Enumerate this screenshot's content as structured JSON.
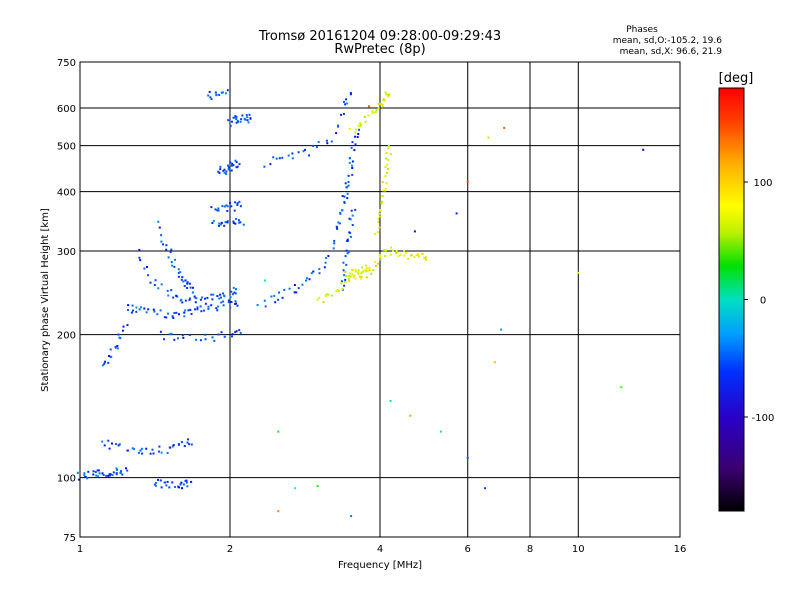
{
  "chart_data": {
    "type": "scatter",
    "title": "Tromsø 20161204 09:28:00-09:29:43",
    "subtitle": "RwPretec (8p)",
    "xlabel": "Frequency [MHz]",
    "ylabel": "Stationary phase Virtual Height [km]",
    "x_scale": "log",
    "y_scale": "log",
    "xlim": [
      1,
      16
    ],
    "ylim": [
      75,
      750
    ],
    "x_ticks": [
      1,
      2,
      4,
      6,
      8,
      10,
      16
    ],
    "y_ticks": [
      75,
      100,
      200,
      300,
      400,
      500,
      600,
      750
    ],
    "x_gridlines": [
      2,
      4,
      6,
      8,
      10
    ],
    "y_gridlines": [
      100,
      200,
      300,
      400,
      500,
      600
    ],
    "phases": {
      "heading": "Phases",
      "line_o": "mean, sd,O:-105.2, 19.6",
      "line_x": "mean, sd,X:  96.6, 21.9"
    },
    "colorbar": {
      "label": "[deg]",
      "range": [
        -180,
        180
      ],
      "ticks": [
        100,
        0,
        -100
      ],
      "tick_labels": [
        "100",
        "0",
        "-100"
      ]
    },
    "series": [
      {
        "name": "O-mode",
        "phase": -105,
        "traces": [
          {
            "f": [
              1.0,
              1.04,
              1.08,
              1.12,
              1.16,
              1.2,
              1.26
            ],
            "h": [
              101,
              101,
              102,
              102,
              103,
              103,
              104
            ]
          },
          {
            "f": [
              1.1,
              1.2,
              1.3,
              1.4,
              1.5,
              1.6,
              1.68
            ],
            "h": [
              118,
              116,
              114,
              114,
              115,
              117,
              120
            ]
          },
          {
            "f": [
              1.4,
              1.48,
              1.55,
              1.62,
              1.68
            ],
            "h": [
              98,
              97,
              96,
              97,
              98
            ]
          },
          {
            "f": [
              1.25,
              1.3,
              1.4,
              1.5,
              1.6,
              1.7,
              1.8,
              1.9,
              2.0,
              2.1
            ],
            "h": [
              230,
              225,
              222,
              220,
              222,
              225,
              228,
              230,
              232,
              235
            ]
          },
          {
            "f": [
              1.3,
              1.4,
              1.5,
              1.6,
              1.7,
              1.8,
              1.9,
              2.0,
              2.05
            ],
            "h": [
              300,
              262,
              245,
              238,
              236,
              238,
              242,
              245,
              250
            ]
          },
          {
            "f": [
              1.42,
              1.5,
              1.55,
              1.6,
              1.65,
              1.7
            ],
            "h": [
              340,
              300,
              280,
              265,
              255,
              248
            ]
          },
          {
            "f": [
              1.12,
              1.16,
              1.2,
              1.24
            ],
            "h": [
              170,
              182,
              195,
              210
            ]
          },
          {
            "f": [
              1.45,
              1.6,
              1.8,
              2.0,
              2.1
            ],
            "h": [
              200,
              197,
              197,
              200,
              203
            ]
          },
          {
            "f": [
              1.85,
              1.95,
              2.05,
              2.12
            ],
            "h": [
              345,
              345,
              346,
              348
            ]
          },
          {
            "f": [
              1.85,
              1.95,
              2.05,
              2.1
            ],
            "h": [
              370,
              370,
              372,
              375
            ]
          },
          {
            "f": [
              1.9,
              1.95,
              2.0,
              2.05,
              2.1
            ],
            "h": [
              440,
              445,
              450,
              455,
              460
            ]
          },
          {
            "f": [
              2.0,
              2.05,
              2.1,
              2.15,
              2.2
            ],
            "h": [
              560,
              565,
              568,
              570,
              572
            ]
          },
          {
            "f": [
              2.3,
              2.5,
              2.7,
              2.9,
              3.1,
              3.3
            ],
            "h": [
              232,
              240,
              250,
              262,
              282,
              320
            ]
          },
          {
            "f": [
              2.35,
              2.6,
              2.9,
              3.2,
              3.4,
              3.5
            ],
            "h": [
              460,
              470,
              485,
              515,
              600,
              650
            ]
          },
          {
            "f": [
              3.3,
              3.35,
              3.4,
              3.45,
              3.5,
              3.55,
              3.6
            ],
            "h": [
              330,
              360,
              390,
              420,
              460,
              500,
              560
            ]
          },
          {
            "f": [
              3.35,
              3.4,
              3.45,
              3.5,
              3.55
            ],
            "h": [
              250,
              280,
              310,
              340,
              370
            ]
          },
          {
            "f": [
              1.8,
              1.9,
              2.0
            ],
            "h": [
              640,
              635,
              645
            ]
          }
        ]
      },
      {
        "name": "X-mode",
        "phase": 97,
        "traces": [
          {
            "f": [
              3.0,
              3.2,
              3.4,
              3.6,
              3.8,
              4.0,
              4.1
            ],
            "h": [
              235,
              245,
              255,
              262,
              270,
              290,
              300
            ]
          },
          {
            "f": [
              3.5,
              3.7,
              3.9,
              4.0,
              4.1,
              4.15
            ],
            "h": [
              540,
              560,
              590,
              610,
              630,
              650
            ]
          },
          {
            "f": [
              3.95,
              4.0,
              4.05,
              4.1,
              4.15,
              4.2
            ],
            "h": [
              330,
              360,
              390,
              420,
              460,
              500
            ]
          },
          {
            "f": [
              4.2,
              4.4,
              4.6,
              4.8,
              5.0
            ],
            "h": [
              300,
              295,
              292,
              290,
              292
            ]
          },
          {
            "f": [
              3.4,
              3.5,
              3.6,
              3.7,
              3.8
            ],
            "h": [
              265,
              270,
              272,
              274,
              278
            ]
          }
        ]
      }
    ],
    "scattered_points": [
      {
        "f": 2.5,
        "h": 125,
        "phase": 20
      },
      {
        "f": 2.7,
        "h": 95,
        "phase": -40
      },
      {
        "f": 3.0,
        "h": 96,
        "phase": 30
      },
      {
        "f": 2.5,
        "h": 85,
        "phase": 140
      },
      {
        "f": 3.5,
        "h": 83,
        "phase": -90
      },
      {
        "f": 4.2,
        "h": 145,
        "phase": -20
      },
      {
        "f": 4.6,
        "h": 135,
        "phase": 60
      },
      {
        "f": 5.3,
        "h": 125,
        "phase": -60
      },
      {
        "f": 6.0,
        "h": 110,
        "phase": -100
      },
      {
        "f": 6.5,
        "h": 95,
        "phase": -110
      },
      {
        "f": 6.8,
        "h": 175,
        "phase": 120
      },
      {
        "f": 7.0,
        "h": 205,
        "phase": -80
      },
      {
        "f": 6.6,
        "h": 520,
        "phase": 80
      },
      {
        "f": 7.1,
        "h": 545,
        "phase": 150
      },
      {
        "f": 6.0,
        "h": 420,
        "phase": 160
      },
      {
        "f": 5.7,
        "h": 360,
        "phase": -120
      },
      {
        "f": 10.0,
        "h": 270,
        "phase": 100
      },
      {
        "f": 12.2,
        "h": 155,
        "phase": 40
      },
      {
        "f": 13.5,
        "h": 490,
        "phase": -130
      },
      {
        "f": 2.35,
        "h": 260,
        "phase": -10
      },
      {
        "f": 3.8,
        "h": 605,
        "phase": 150
      },
      {
        "f": 4.7,
        "h": 330,
        "phase": -150
      }
    ]
  }
}
